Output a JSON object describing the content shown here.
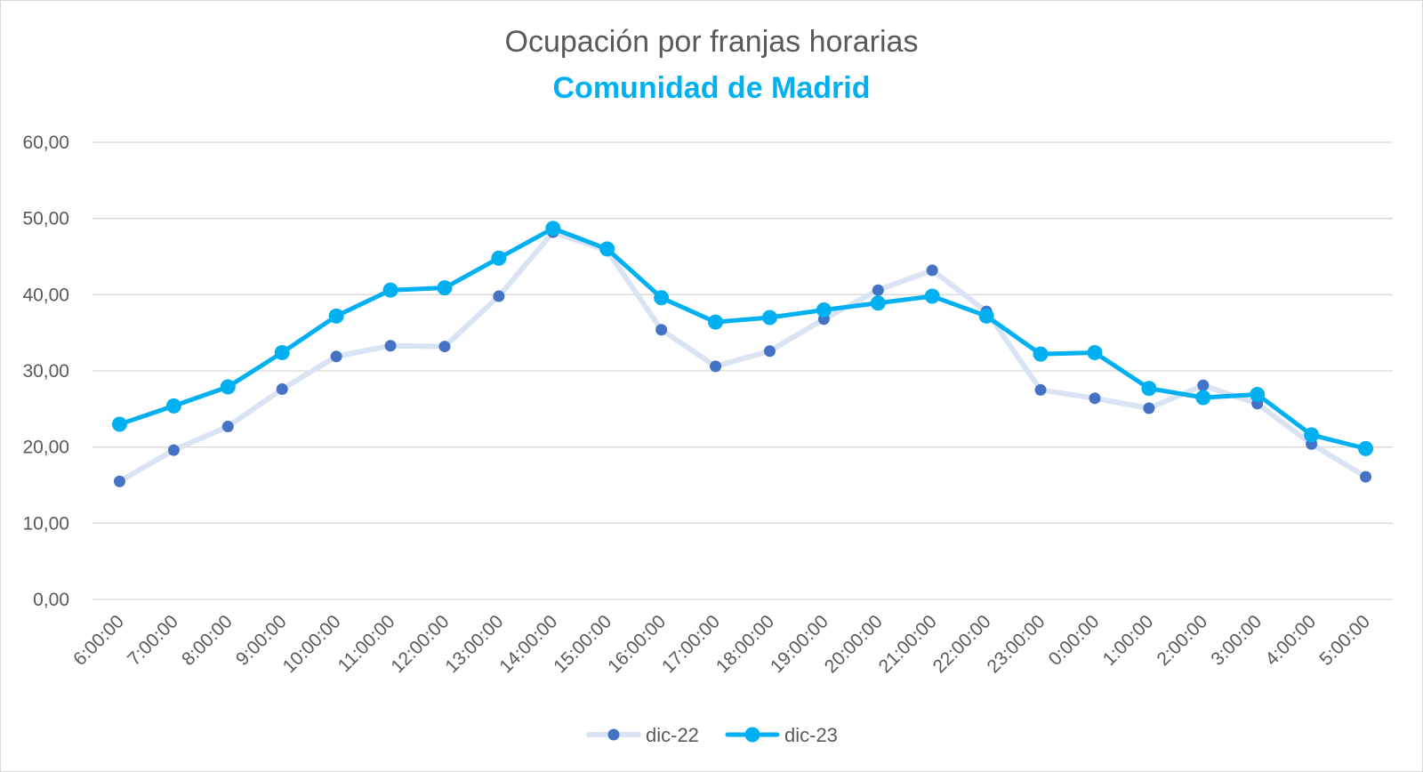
{
  "chart_data": {
    "type": "line",
    "title": "Ocupación por franjas horarias",
    "subtitle": "Comunidad de Madrid",
    "xlabel": "",
    "ylabel": "",
    "ylim": [
      0,
      60
    ],
    "yticks": [
      "0,00",
      "10,00",
      "20,00",
      "30,00",
      "40,00",
      "50,00",
      "60,00"
    ],
    "grid": true,
    "legend_position": "bottom",
    "categories": [
      "6:00:00",
      "7:00:00",
      "8:00:00",
      "9:00:00",
      "10:00:00",
      "11:00:00",
      "12:00:00",
      "13:00:00",
      "14:00:00",
      "15:00:00",
      "16:00:00",
      "17:00:00",
      "18:00:00",
      "19:00:00",
      "20:00:00",
      "21:00:00",
      "22:00:00",
      "23:00:00",
      "0:00:00",
      "1:00:00",
      "2:00:00",
      "3:00:00",
      "4:00:00",
      "5:00:00"
    ],
    "series": [
      {
        "name": "dic-22",
        "line_color": "#dae3f3",
        "marker_color": "#4472c4",
        "values": [
          15.5,
          19.6,
          22.7,
          27.6,
          31.9,
          33.3,
          33.2,
          39.8,
          48.2,
          45.8,
          35.4,
          30.6,
          32.6,
          36.8,
          40.6,
          43.2,
          37.8,
          27.5,
          26.4,
          25.1,
          28.1,
          25.7,
          20.4,
          16.1
        ]
      },
      {
        "name": "dic-23",
        "line_color": "#00b0f0",
        "marker_color": "#00b0f0",
        "values": [
          23.0,
          25.4,
          27.9,
          32.4,
          37.2,
          40.6,
          40.9,
          44.8,
          48.7,
          46.0,
          39.6,
          36.4,
          37.0,
          38.0,
          38.9,
          39.8,
          37.2,
          32.2,
          32.4,
          27.7,
          26.5,
          26.9,
          21.6,
          19.8
        ]
      }
    ]
  },
  "colors": {
    "title": "#595959",
    "subtitle": "#00b0f0",
    "gridline": "#d9d9d9",
    "axis_text": "#595959"
  }
}
